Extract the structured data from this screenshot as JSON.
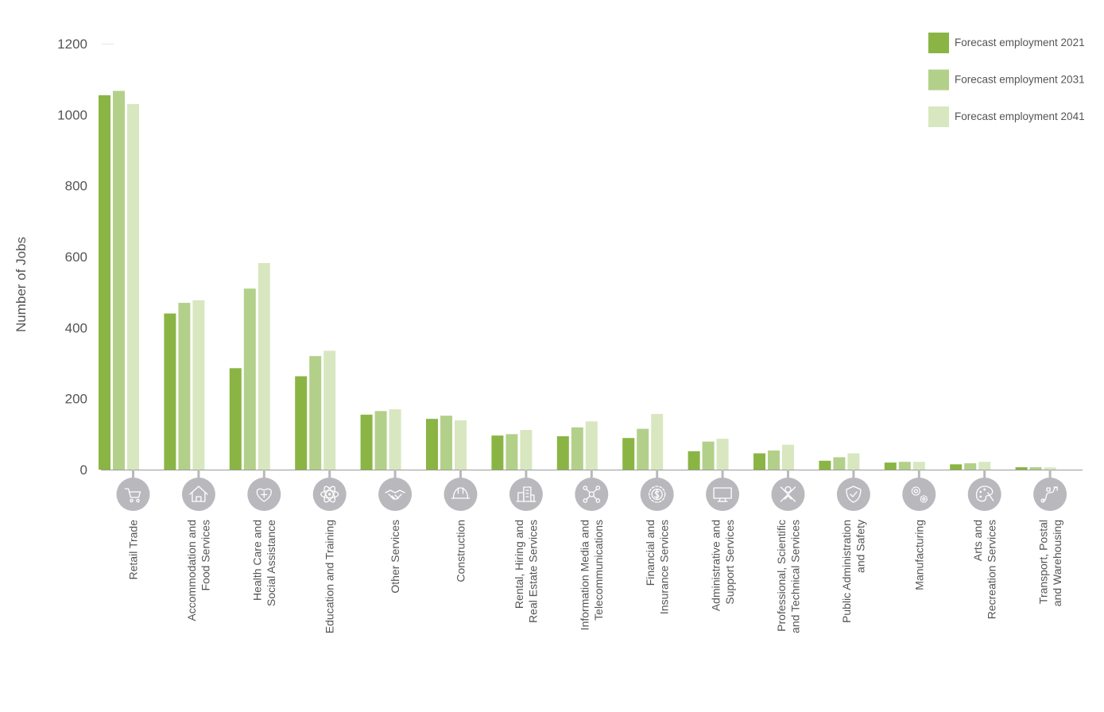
{
  "chart_data": {
    "type": "bar",
    "ylabel": "Number of Jobs",
    "ylim": [
      0,
      1200
    ],
    "yticks": [
      0,
      200,
      400,
      600,
      800,
      1000,
      1200
    ],
    "grid": false,
    "legend_position": "top-right",
    "categories": [
      {
        "lines": [
          "Retail Trade"
        ],
        "icon": "shopping-cart-icon"
      },
      {
        "lines": [
          "Accommodation and",
          "Food Services"
        ],
        "icon": "house-icon"
      },
      {
        "lines": [
          "Health Care and",
          "Social Assistance"
        ],
        "icon": "heart-plus-icon"
      },
      {
        "lines": [
          "Education and Training"
        ],
        "icon": "atom-icon"
      },
      {
        "lines": [
          "Other Services"
        ],
        "icon": "handshake-icon"
      },
      {
        "lines": [
          "Construction"
        ],
        "icon": "hard-hat-icon"
      },
      {
        "lines": [
          "Rental, Hiring and",
          "Real Estate Services"
        ],
        "icon": "buildings-icon"
      },
      {
        "lines": [
          "Information Media and",
          "Telecommunications"
        ],
        "icon": "network-icon"
      },
      {
        "lines": [
          "Financial and",
          "Insurance Services"
        ],
        "icon": "dollar-gear-icon"
      },
      {
        "lines": [
          "Administrative and",
          "Support Services"
        ],
        "icon": "monitor-icon"
      },
      {
        "lines": [
          "Professional, Scientific",
          "and Technical Services"
        ],
        "icon": "tools-icon"
      },
      {
        "lines": [
          "Public Administration",
          "and Safety"
        ],
        "icon": "shield-check-icon"
      },
      {
        "lines": [
          "Manufacturing"
        ],
        "icon": "gears-icon"
      },
      {
        "lines": [
          "Arts and",
          "Recreation Services"
        ],
        "icon": "palette-icon"
      },
      {
        "lines": [
          "Transport, Postal",
          "and Warehousing"
        ],
        "icon": "route-icon"
      }
    ],
    "series": [
      {
        "name": "Forecast employment 2021",
        "color": "#8ab544",
        "values": [
          1055,
          440,
          286,
          263,
          155,
          143,
          96,
          94,
          89,
          52,
          46,
          25,
          20,
          15,
          7
        ]
      },
      {
        "name": "Forecast employment 2031",
        "color": "#b3d08a",
        "values": [
          1067,
          470,
          510,
          320,
          165,
          152,
          100,
          119,
          115,
          79,
          54,
          35,
          22,
          18,
          7
        ]
      },
      {
        "name": "Forecast employment 2041",
        "color": "#d8e7c0",
        "values": [
          1030,
          477,
          582,
          335,
          170,
          139,
          112,
          136,
          157,
          87,
          70,
          46,
          22,
          22,
          6
        ]
      }
    ]
  },
  "colors": {
    "axis": "#9a9a9a",
    "icon_circle": "#b9b9bd",
    "text": "#555555"
  }
}
